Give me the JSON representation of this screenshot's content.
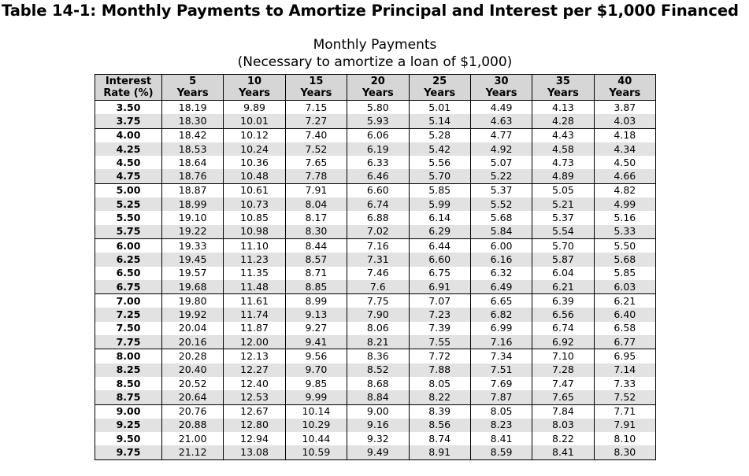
{
  "title": "Table 14-1: Monthly Payments to Amortize Principal and Interest per $1,000 Financed",
  "caption": {
    "line1": "Monthly Payments",
    "line2": "(Necessary to amortize a loan of $1,000)"
  },
  "table": {
    "headers": [
      [
        "Interest",
        "Rate (%)"
      ],
      [
        "5",
        "Years"
      ],
      [
        "10",
        "Years"
      ],
      [
        "15",
        "Years"
      ],
      [
        "20",
        "Years"
      ],
      [
        "25",
        "Years"
      ],
      [
        "30",
        "Years"
      ],
      [
        "35",
        "Years"
      ],
      [
        "40",
        "Years"
      ]
    ],
    "rows": [
      [
        "3.50",
        "18.19",
        "9.89",
        "7.15",
        "5.80",
        "5.01",
        "4.49",
        "4.13",
        "3.87"
      ],
      [
        "3.75",
        "18.30",
        "10.01",
        "7.27",
        "5.93",
        "5.14",
        "4.63",
        "4.28",
        "4.03"
      ],
      [
        "4.00",
        "18.42",
        "10.12",
        "7.40",
        "6.06",
        "5.28",
        "4.77",
        "4.43",
        "4.18"
      ],
      [
        "4.25",
        "18.53",
        "10.24",
        "7.52",
        "6.19",
        "5.42",
        "4.92",
        "4.58",
        "4.34"
      ],
      [
        "4.50",
        "18.64",
        "10.36",
        "7.65",
        "6.33",
        "5.56",
        "5.07",
        "4.73",
        "4.50"
      ],
      [
        "4.75",
        "18.76",
        "10.48",
        "7.78",
        "6.46",
        "5.70",
        "5.22",
        "4.89",
        "4.66"
      ],
      [
        "5.00",
        "18.87",
        "10.61",
        "7.91",
        "6.60",
        "5.85",
        "5.37",
        "5.05",
        "4.82"
      ],
      [
        "5.25",
        "18.99",
        "10.73",
        "8.04",
        "6.74",
        "5.99",
        "5.52",
        "5.21",
        "4.99"
      ],
      [
        "5.50",
        "19.10",
        "10.85",
        "8.17",
        "6.88",
        "6.14",
        "5.68",
        "5.37",
        "5.16"
      ],
      [
        "5.75",
        "19.22",
        "10.98",
        "8.30",
        "7.02",
        "6.29",
        "5.84",
        "5.54",
        "5.33"
      ],
      [
        "6.00",
        "19.33",
        "11.10",
        "8.44",
        "7.16",
        "6.44",
        "6.00",
        "5.70",
        "5.50"
      ],
      [
        "6.25",
        "19.45",
        "11.23",
        "8.57",
        "7.31",
        "6.60",
        "6.16",
        "5.87",
        "5.68"
      ],
      [
        "6.50",
        "19.57",
        "11.35",
        "8.71",
        "7.46",
        "6.75",
        "6.32",
        "6.04",
        "5.85"
      ],
      [
        "6.75",
        "19.68",
        "11.48",
        "8.85",
        "7.6",
        "6.91",
        "6.49",
        "6.21",
        "6.03"
      ],
      [
        "7.00",
        "19.80",
        "11.61",
        "8.99",
        "7.75",
        "7.07",
        "6.65",
        "6.39",
        "6.21"
      ],
      [
        "7.25",
        "19.92",
        "11.74",
        "9.13",
        "7.90",
        "7.23",
        "6.82",
        "6.56",
        "6.40"
      ],
      [
        "7.50",
        "20.04",
        "11.87",
        "9.27",
        "8.06",
        "7.39",
        "6.99",
        "6.74",
        "6.58"
      ],
      [
        "7.75",
        "20.16",
        "12.00",
        "9.41",
        "8.21",
        "7.55",
        "7.16",
        "6.92",
        "6.77"
      ],
      [
        "8.00",
        "20.28",
        "12.13",
        "9.56",
        "8.36",
        "7.72",
        "7.34",
        "7.10",
        "6.95"
      ],
      [
        "8.25",
        "20.40",
        "12.27",
        "9.70",
        "8.52",
        "7.88",
        "7.51",
        "7.28",
        "7.14"
      ],
      [
        "8.50",
        "20.52",
        "12.40",
        "9.85",
        "8.68",
        "8.05",
        "7.69",
        "7.47",
        "7.33"
      ],
      [
        "8.75",
        "20.64",
        "12.53",
        "9.99",
        "8.84",
        "8.22",
        "7.87",
        "7.65",
        "7.52"
      ],
      [
        "9.00",
        "20.76",
        "12.67",
        "10.14",
        "9.00",
        "8.39",
        "8.05",
        "7.84",
        "7.71"
      ],
      [
        "9.25",
        "20.88",
        "12.80",
        "10.29",
        "9.16",
        "8.56",
        "8.23",
        "8.03",
        "7.91"
      ],
      [
        "9.50",
        "21.00",
        "12.94",
        "10.44",
        "9.32",
        "8.74",
        "8.41",
        "8.22",
        "8.10"
      ],
      [
        "9.75",
        "21.12",
        "13.08",
        "10.59",
        "9.49",
        "8.91",
        "8.59",
        "8.41",
        "8.30"
      ]
    ]
  }
}
